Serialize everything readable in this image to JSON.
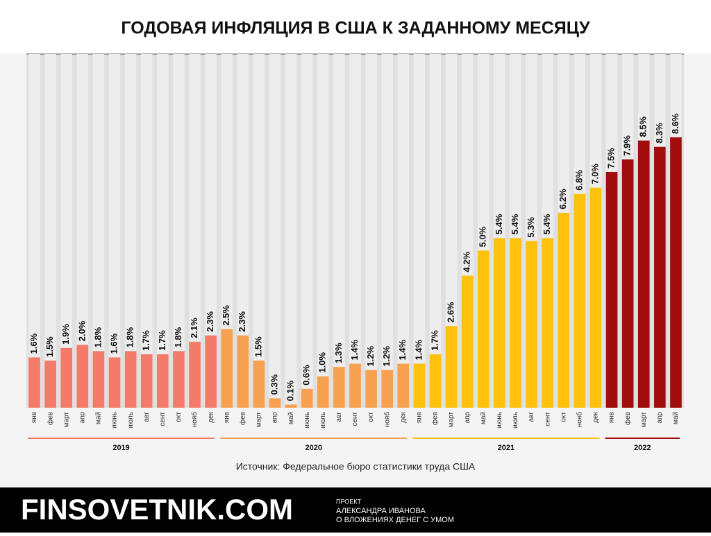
{
  "chart_data": {
    "type": "bar",
    "title": "ГОДОВАЯ ИНФЛЯЦИЯ В США К ЗАДАННОМУ МЕСЯЦУ",
    "source": "Источник: Федеральное бюро статистики труда США",
    "ylim": [
      0,
      11.25
    ],
    "series": [
      {
        "name": "2019",
        "color": "#f47a6a",
        "categories": [
          "янв",
          "фев",
          "март",
          "апр",
          "май",
          "июнь",
          "июль",
          "авг",
          "сент",
          "окт",
          "нояб",
          "дек"
        ],
        "values": [
          1.6,
          1.5,
          1.9,
          2.0,
          1.8,
          1.6,
          1.8,
          1.7,
          1.7,
          1.8,
          2.1,
          2.3
        ],
        "value_labels": [
          "1.6%",
          "1.5%",
          "1.9%",
          "2.0%",
          "1.8%",
          "1.6%",
          "1.8%",
          "1.7%",
          "1.7%",
          "1.8%",
          "2.1%",
          "2.3%"
        ]
      },
      {
        "name": "2020",
        "color": "#f7a150",
        "categories": [
          "янв",
          "фев",
          "март",
          "апр",
          "май",
          "июнь",
          "июль",
          "авг",
          "сент",
          "окт",
          "нояб",
          "дек"
        ],
        "values": [
          2.5,
          2.3,
          1.5,
          0.3,
          0.1,
          0.6,
          1.0,
          1.3,
          1.4,
          1.2,
          1.2,
          1.4
        ],
        "value_labels": [
          "2.5%",
          "2.3%",
          "1.5%",
          "0.3%",
          "0.1%",
          "0.6%",
          "1.0%",
          "1.3%",
          "1.4%",
          "1.2%",
          "1.2%",
          "1.4%"
        ]
      },
      {
        "name": "2021",
        "color": "#fec10e",
        "categories": [
          "янв",
          "фев",
          "март",
          "апр",
          "май",
          "июнь",
          "июль",
          "авг",
          "сент",
          "окт",
          "нояб",
          "дек"
        ],
        "values": [
          1.4,
          1.7,
          2.6,
          4.2,
          5.0,
          5.4,
          5.4,
          5.3,
          5.4,
          6.2,
          6.8,
          7.0
        ],
        "value_labels": [
          "1.4%",
          "1.7%",
          "2.6%",
          "4.2%",
          "5.0%",
          "5.4%",
          "5.4%",
          "5.3%",
          "5.4%",
          "6.2%",
          "6.8%",
          "7.0%"
        ]
      },
      {
        "name": "2022",
        "color": "#a10c0c",
        "categories": [
          "янв",
          "фев",
          "март",
          "апр",
          "май"
        ],
        "values": [
          7.5,
          7.9,
          8.5,
          8.3,
          8.6
        ],
        "value_labels": [
          "7.5%",
          "7.9%",
          "8.5%",
          "8.3%",
          "8.6%"
        ]
      }
    ]
  },
  "footer": {
    "brand": "FINSOVETNIK.COM",
    "line1": "ПРОЕКТ",
    "line2": "АЛЕКСАНДРА ИВАНОВА",
    "line3": "О ВЛОЖЕНИЯХ ДЕНЕГ С УМОМ"
  }
}
